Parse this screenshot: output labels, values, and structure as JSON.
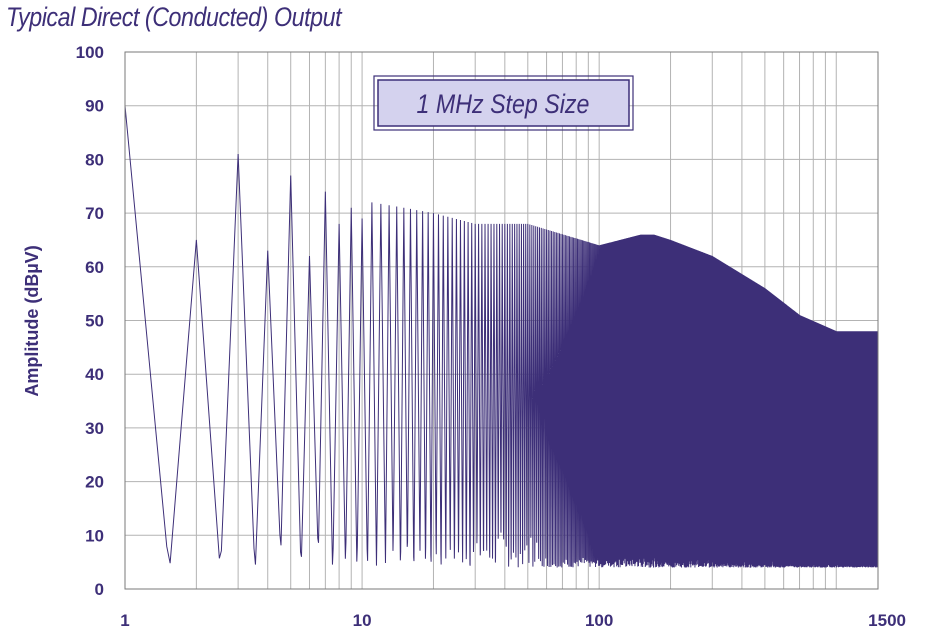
{
  "chart_data": {
    "type": "line",
    "title": "Typical Direct (Conducted) Output",
    "annotation": "1 MHz Step Size",
    "xlabel": "",
    "ylabel": "Amplitude (dBµV)",
    "x_scale": "log",
    "xlim": [
      1,
      1500
    ],
    "ylim": [
      0,
      100
    ],
    "x_ticks": [
      1,
      10,
      100,
      1500
    ],
    "y_ticks": [
      0,
      10,
      20,
      30,
      40,
      50,
      60,
      70,
      80,
      90,
      100
    ],
    "grid": true,
    "series_color": "#3d2f78",
    "grid_color": "#b3b3b3",
    "annotation_fill": "#d4d2ee",
    "step_mhz": 1,
    "series": [
      {
        "values_description_free": true,
        "peaks": [
          {
            "x": 1,
            "y": 90
          },
          {
            "x": 2,
            "y": 65
          },
          {
            "x": 3,
            "y": 81
          },
          {
            "x": 4,
            "y": 63
          },
          {
            "x": 5,
            "y": 77
          },
          {
            "x": 6,
            "y": 62
          },
          {
            "x": 7,
            "y": 74
          },
          {
            "x": 8,
            "y": 68
          },
          {
            "x": 9,
            "y": 71
          },
          {
            "x": 10,
            "y": 69
          },
          {
            "x": 11,
            "y": 72
          },
          {
            "x": 15,
            "y": 71
          },
          {
            "x": 20,
            "y": 70
          },
          {
            "x": 30,
            "y": 68
          },
          {
            "x": 50,
            "y": 68
          },
          {
            "x": 100,
            "y": 64
          },
          {
            "x": 150,
            "y": 66
          },
          {
            "x": 170,
            "y": 66
          },
          {
            "x": 200,
            "y": 65
          },
          {
            "x": 300,
            "y": 62
          },
          {
            "x": 500,
            "y": 56
          },
          {
            "x": 700,
            "y": 51
          },
          {
            "x": 1000,
            "y": 48
          },
          {
            "x": 1500,
            "y": 48
          }
        ],
        "floor": 4
      }
    ]
  }
}
